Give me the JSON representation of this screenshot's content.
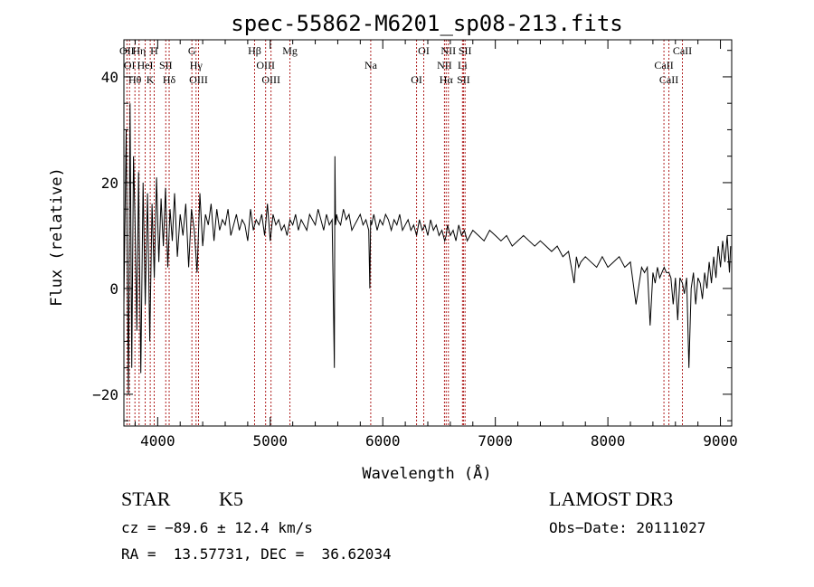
{
  "chart_data": {
    "type": "line",
    "title": "spec-55862-M6201_sp08-213.fits",
    "xlabel": "Wavelength (Å)",
    "ylabel": "Flux (relative)",
    "xlim": [
      3700,
      9100
    ],
    "ylim": [
      -26,
      47
    ],
    "xticks": [
      4000,
      5000,
      6000,
      7000,
      8000,
      9000
    ],
    "yticks": [
      -20,
      0,
      20,
      40
    ],
    "xtick_labels": [
      "4000",
      "5000",
      "6000",
      "7000",
      "8000",
      "9000"
    ],
    "ytick_labels": [
      "−20",
      "0",
      "20",
      "40"
    ],
    "series": [
      {
        "name": "spectrum",
        "x": [
          3700,
          3720,
          3740,
          3755,
          3770,
          3785,
          3800,
          3815,
          3830,
          3850,
          3870,
          3890,
          3910,
          3930,
          3950,
          3970,
          3990,
          4010,
          4030,
          4050,
          4070,
          4090,
          4110,
          4130,
          4150,
          4175,
          4200,
          4225,
          4250,
          4275,
          4300,
          4325,
          4350,
          4375,
          4400,
          4425,
          4450,
          4475,
          4500,
          4525,
          4550,
          4575,
          4600,
          4625,
          4650,
          4675,
          4700,
          4725,
          4750,
          4775,
          4800,
          4825,
          4850,
          4875,
          4900,
          4925,
          4950,
          4975,
          5000,
          5025,
          5050,
          5075,
          5100,
          5125,
          5150,
          5175,
          5200,
          5225,
          5250,
          5275,
          5300,
          5325,
          5350,
          5375,
          5400,
          5425,
          5450,
          5475,
          5500,
          5525,
          5550,
          5570,
          5575,
          5580,
          5590,
          5600,
          5625,
          5650,
          5675,
          5700,
          5725,
          5750,
          5775,
          5800,
          5825,
          5850,
          5875,
          5885,
          5892,
          5900,
          5920,
          5950,
          5975,
          6000,
          6025,
          6050,
          6075,
          6100,
          6125,
          6150,
          6175,
          6200,
          6225,
          6250,
          6275,
          6300,
          6325,
          6350,
          6375,
          6400,
          6425,
          6450,
          6475,
          6500,
          6525,
          6550,
          6563,
          6575,
          6600,
          6625,
          6650,
          6675,
          6700,
          6725,
          6750,
          6775,
          6800,
          6850,
          6900,
          6950,
          7000,
          7050,
          7100,
          7150,
          7200,
          7250,
          7300,
          7350,
          7400,
          7450,
          7500,
          7550,
          7600,
          7650,
          7700,
          7720,
          7740,
          7760,
          7800,
          7850,
          7900,
          7950,
          8000,
          8050,
          8100,
          8150,
          8200,
          8250,
          8300,
          8325,
          8350,
          8375,
          8400,
          8420,
          8440,
          8460,
          8480,
          8500,
          8520,
          8542,
          8560,
          8580,
          8600,
          8620,
          8640,
          8662,
          8680,
          8700,
          8720,
          8740,
          8760,
          8780,
          8800,
          8820,
          8840,
          8860,
          8880,
          8900,
          8920,
          8940,
          8960,
          8980,
          9000,
          9020,
          9040,
          9060,
          9080,
          9090
        ],
        "y": [
          -3,
          30,
          -20,
          35,
          -15,
          25,
          12,
          -8,
          22,
          -16,
          20,
          -3,
          18,
          -10,
          16,
          2,
          21,
          5,
          17,
          8,
          19,
          4,
          15,
          9,
          18,
          6,
          14,
          10,
          16,
          4,
          15,
          11,
          3,
          18,
          8,
          14,
          12,
          16,
          9,
          15,
          11,
          13,
          12,
          15,
          10,
          12,
          14,
          11,
          13,
          12,
          9,
          15,
          11,
          13,
          12,
          14,
          10,
          16,
          9,
          14,
          12,
          13,
          11,
          12,
          10,
          13,
          12,
          14,
          11,
          13,
          12,
          11,
          14,
          13,
          12,
          15,
          13,
          11,
          14,
          12,
          13,
          -15,
          25,
          12,
          14,
          13,
          12,
          15,
          13,
          14,
          11,
          12,
          13,
          14,
          12,
          13,
          11,
          0,
          13,
          12,
          14,
          11,
          13,
          12,
          14,
          13,
          11,
          13,
          12,
          14,
          11,
          12,
          13,
          11,
          12,
          10,
          13,
          11,
          12,
          10,
          13,
          11,
          12,
          10,
          11,
          9,
          10,
          12,
          10,
          11,
          9,
          12,
          10,
          11,
          9,
          10,
          11,
          10,
          9,
          11,
          10,
          9,
          10,
          8,
          9,
          10,
          9,
          8,
          9,
          8,
          7,
          8,
          6,
          7,
          1,
          6,
          4,
          5,
          6,
          5,
          4,
          6,
          4,
          5,
          6,
          4,
          5,
          -3,
          4,
          3,
          4,
          -7,
          3,
          1,
          4,
          2,
          3,
          4,
          3,
          3,
          2,
          -3,
          2,
          -6,
          2,
          1,
          -1,
          2,
          -15,
          0,
          3,
          -3,
          2,
          1,
          -2,
          3,
          0,
          5,
          1,
          6,
          2,
          8,
          4,
          9,
          5,
          10,
          3,
          8
        ]
      }
    ],
    "lines": [
      {
        "wavelength": 3727,
        "label": "OII"
      },
      {
        "wavelength": 3750,
        "label": "OI"
      },
      {
        "wavelength": 3798,
        "label": "Hθ"
      },
      {
        "wavelength": 3835,
        "label": "Hη"
      },
      {
        "wavelength": 3889,
        "label": "HeI"
      },
      {
        "wavelength": 3934,
        "label": "K"
      },
      {
        "wavelength": 3969,
        "label": "H"
      },
      {
        "wavelength": 4072,
        "label": "SII"
      },
      {
        "wavelength": 4102,
        "label": "Hδ"
      },
      {
        "wavelength": 4304,
        "label": "G"
      },
      {
        "wavelength": 4341,
        "label": "Hγ"
      },
      {
        "wavelength": 4363,
        "label": "OIII"
      },
      {
        "wavelength": 4861,
        "label": "Hβ"
      },
      {
        "wavelength": 4959,
        "label": "OIII"
      },
      {
        "wavelength": 5007,
        "label": "OIII"
      },
      {
        "wavelength": 5175,
        "label": "Mg"
      },
      {
        "wavelength": 5893,
        "label": "Na"
      },
      {
        "wavelength": 6300,
        "label": "OI"
      },
      {
        "wavelength": 6364,
        "label": "OI"
      },
      {
        "wavelength": 6548,
        "label": "NII"
      },
      {
        "wavelength": 6563,
        "label": "Hα"
      },
      {
        "wavelength": 6583,
        "label": "NII"
      },
      {
        "wavelength": 6708,
        "label": "Li"
      },
      {
        "wavelength": 6717,
        "label": "SII"
      },
      {
        "wavelength": 6731,
        "label": "SII"
      },
      {
        "wavelength": 8498,
        "label": "CaII"
      },
      {
        "wavelength": 8542,
        "label": "CaII"
      },
      {
        "wavelength": 8662,
        "label": "CaII"
      }
    ]
  },
  "info": {
    "class": "STAR",
    "subclass": "K5",
    "cz": "cz = −89.6 ± 12.4 km/s",
    "coords": "RA =  13.57731, DEC =  36.62034",
    "survey": "LAMOST DR3",
    "obs_date": "Obs−Date: 20111027"
  },
  "colors": {
    "line_marker": "#b02020",
    "spectrum": "#000000"
  }
}
